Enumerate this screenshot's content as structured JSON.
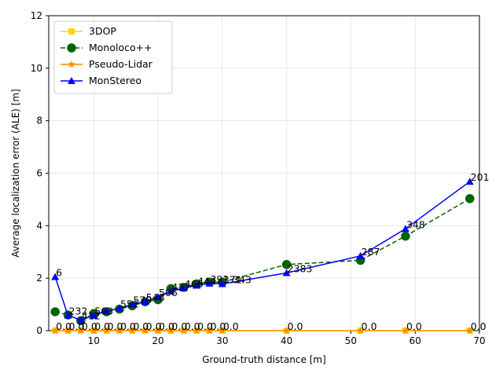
{
  "chart_data": {
    "type": "line",
    "title": "",
    "xlabel": "Ground-truth distance [m]",
    "ylabel": "Average localization error (ALE) [m]",
    "xlim": [
      3,
      70
    ],
    "ylim": [
      0,
      12
    ],
    "xticks": [
      10,
      20,
      30,
      40,
      50,
      60,
      70
    ],
    "yticks": [
      0,
      2,
      4,
      6,
      8,
      10,
      12
    ],
    "grid": true,
    "legend_position": "top-left",
    "x": [
      4,
      6,
      8,
      10,
      12,
      14,
      16,
      18,
      20,
      22,
      24,
      26,
      28,
      30,
      40,
      51.5,
      58.5,
      68.5
    ],
    "series": [
      {
        "name": "3DOP",
        "color": "#ffd700",
        "marker": "square",
        "linestyle": "solid",
        "values": [
          0,
          0,
          0,
          0,
          0,
          0,
          0,
          0,
          0,
          0,
          0,
          0,
          0,
          0,
          0,
          0,
          0,
          0
        ]
      },
      {
        "name": "Monoloco++",
        "color": "#006400",
        "marker": "circle",
        "linestyle": "dashed",
        "values": [
          0.72,
          0.6,
          0.38,
          0.65,
          0.72,
          0.82,
          0.95,
          1.1,
          1.18,
          1.6,
          1.65,
          1.78,
          1.85,
          1.85,
          2.52,
          2.68,
          3.6,
          5.03
        ]
      },
      {
        "name": "Pseudo-Lidar",
        "color": "#ff8c00",
        "marker": "star",
        "linestyle": "solid",
        "values": [
          0,
          0,
          0,
          0,
          0,
          0,
          0,
          0,
          0,
          0,
          0,
          0,
          0,
          0,
          0,
          0,
          0,
          0
        ]
      },
      {
        "name": "MonStereo",
        "color": "#0000ff",
        "marker": "triangle",
        "linestyle": "solid",
        "values": [
          2.05,
          0.58,
          0.4,
          0.58,
          0.75,
          0.85,
          1.0,
          1.1,
          1.28,
          1.5,
          1.62,
          1.72,
          1.8,
          1.78,
          2.2,
          2.85,
          3.88,
          5.68
        ]
      }
    ],
    "annotations": {
      "counts": [
        {
          "x": 4,
          "y": 2.05,
          "text": "6"
        },
        {
          "x": 6,
          "y": 0.58,
          "text": "232"
        },
        {
          "x": 8,
          "y": 0.4,
          "text": "412"
        },
        {
          "x": 10,
          "y": 0.58,
          "text": "563"
        },
        {
          "x": 12,
          "y": 0.75,
          "text": ""
        },
        {
          "x": 14,
          "y": 0.85,
          "text": "551"
        },
        {
          "x": 16,
          "y": 1.0,
          "text": "579"
        },
        {
          "x": 18,
          "y": 1.1,
          "text": "548"
        },
        {
          "x": 20,
          "y": 1.28,
          "text": "506"
        },
        {
          "x": 22,
          "y": 1.5,
          "text": "437"
        },
        {
          "x": 24,
          "y": 1.62,
          "text": "466"
        },
        {
          "x": 26,
          "y": 1.72,
          "text": "444"
        },
        {
          "x": 28,
          "y": 1.8,
          "text": "391"
        },
        {
          "x": 30,
          "y": 1.78,
          "text": "371"
        },
        {
          "x": 31.5,
          "y": 1.78,
          "text": "343"
        },
        {
          "x": 40,
          "y": 2.2,
          "text": "2383"
        },
        {
          "x": 51.5,
          "y": 2.85,
          "text": "287"
        },
        {
          "x": 58.5,
          "y": 3.88,
          "text": "348"
        },
        {
          "x": 68.5,
          "y": 5.68,
          "text": "201"
        }
      ],
      "zeros": [
        {
          "x": 4,
          "text": "0.0"
        },
        {
          "x": 6,
          "text": "0.0"
        },
        {
          "x": 8,
          "text": "0.0"
        },
        {
          "x": 10,
          "text": "0.0"
        },
        {
          "x": 12,
          "text": "0.0"
        },
        {
          "x": 14,
          "text": "0.0"
        },
        {
          "x": 16,
          "text": "0.0"
        },
        {
          "x": 18,
          "text": "0.0"
        },
        {
          "x": 20,
          "text": "0.0"
        },
        {
          "x": 22,
          "text": "0.0"
        },
        {
          "x": 24,
          "text": "0.0"
        },
        {
          "x": 26,
          "text": "0.0"
        },
        {
          "x": 28,
          "text": "0.0"
        },
        {
          "x": 30,
          "text": "0.0"
        },
        {
          "x": 40,
          "text": "0.0"
        },
        {
          "x": 51.5,
          "text": "0.0"
        },
        {
          "x": 58.5,
          "text": "0.0"
        },
        {
          "x": 68.5,
          "text": "0.0"
        }
      ]
    }
  }
}
